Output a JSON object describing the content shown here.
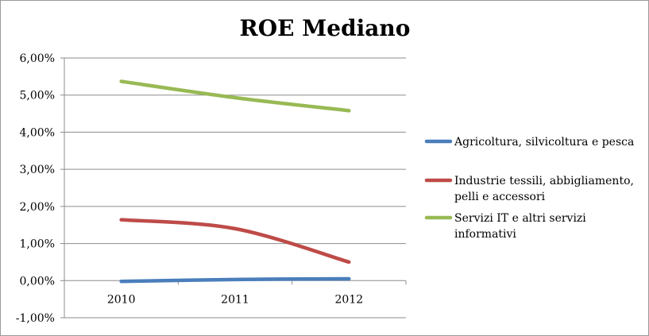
{
  "chart_data": {
    "type": "line",
    "title": "ROE Mediano",
    "xlabel": "",
    "ylabel": "",
    "categories": [
      "2010",
      "2011",
      "2012"
    ],
    "ylim": [
      -1,
      6
    ],
    "ytick_step": 1,
    "ytick_labels": [
      "-1,00%",
      "0,00%",
      "1,00%",
      "2,00%",
      "3,00%",
      "4,00%",
      "5,00%",
      "6,00%"
    ],
    "grid": true,
    "legend": "right",
    "series": [
      {
        "name": "Agricoltura, silvicoltura e pesca",
        "legend_lines": [
          "Agricoltura, silvicoltura e pesca"
        ],
        "color": "#4a7ebb",
        "values": [
          -0.02,
          0.03,
          0.05
        ]
      },
      {
        "name": "Industrie tessili, abbigliamento, pelli e accessori",
        "legend_lines": [
          "Industrie tessili, abbigliamento,",
          "pelli e accessori"
        ],
        "color": "#be4b48",
        "values": [
          1.64,
          1.4,
          0.5
        ]
      },
      {
        "name": "Servizi IT e altri servizi informativi",
        "legend_lines": [
          "Servizi IT e altri servizi",
          "informativi"
        ],
        "color": "#98b954",
        "values": [
          5.37,
          4.93,
          4.58
        ]
      }
    ]
  }
}
